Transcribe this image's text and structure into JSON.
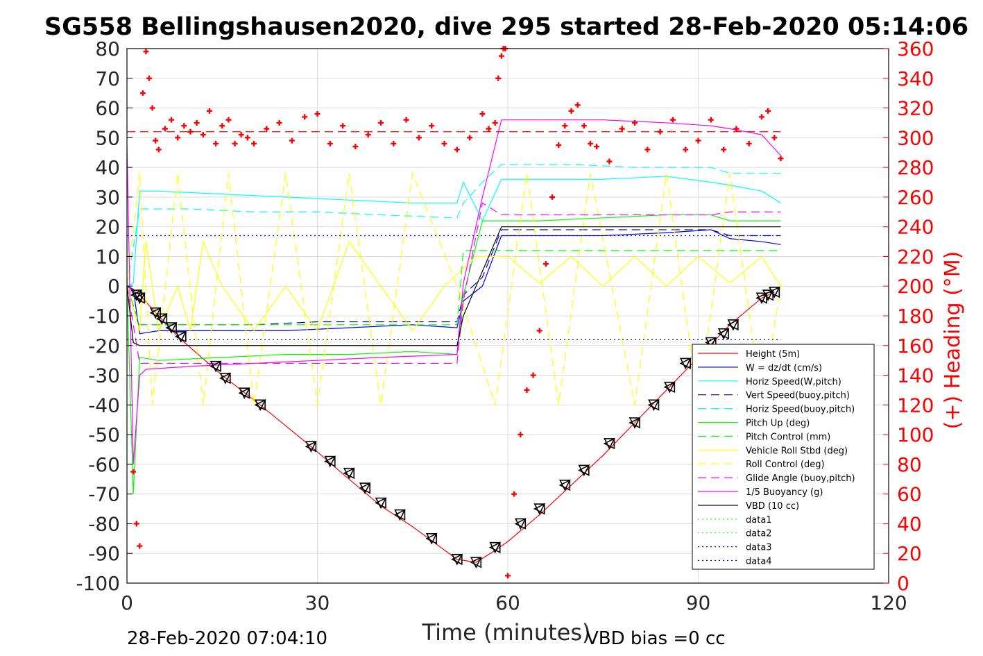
{
  "chart_data": {
    "type": "line",
    "title": "SG558 Bellingshausen2020, dive 295 started 28-Feb-2020 05:14:06",
    "xlabel": "Time (minutes)",
    "ylabel": "",
    "y2label": "(+) Heading (°M)",
    "xlim": [
      0,
      120
    ],
    "ylim": [
      -100,
      80
    ],
    "y2lim": [
      0,
      360
    ],
    "xticks": [
      "0",
      "30",
      "60",
      "90",
      "120"
    ],
    "yticks": [
      "80",
      "70",
      "60",
      "50",
      "40",
      "30",
      "20",
      "10",
      "0",
      "-10",
      "-20",
      "-30",
      "-40",
      "-50",
      "-60",
      "-70",
      "-80",
      "-90",
      "-100"
    ],
    "y2ticks": [
      "360",
      "340",
      "320",
      "300",
      "280",
      "260",
      "240",
      "220",
      "200",
      "180",
      "160",
      "140",
      "120",
      "100",
      "80",
      "60",
      "40",
      "20",
      "0"
    ],
    "grid": true,
    "legend_position": "bottom-right",
    "footer_left": "28-Feb-2020 07:04:10",
    "footer_right": "VBD bias =0 cc",
    "colors": {
      "red": "#ff0000",
      "blue": "#0000ff",
      "cyan": "#00ffff",
      "green": "#00ff00",
      "yellow": "#ffff00",
      "magenta": "#ff00ff",
      "black": "#000000",
      "navy": "#0000a0"
    },
    "series": [
      {
        "name": "Height (5m)",
        "color": "#ff0000",
        "style": "solid",
        "x": [
          0,
          2,
          5,
          8,
          15,
          21,
          29,
          35,
          40,
          45,
          52,
          55,
          58,
          60,
          65,
          70,
          75,
          80,
          85,
          90,
          95,
          100,
          102
        ],
        "y": [
          0,
          -3,
          -10,
          -17,
          -30,
          -40,
          -54,
          -65,
          -74,
          -81,
          -92,
          -93,
          -89,
          -86,
          -77,
          -67,
          -57,
          -46,
          -35,
          -24,
          -13,
          -4,
          -2
        ]
      },
      {
        "name": "W = dz/dt (cm/s)",
        "color": "#0000ff",
        "style": "solid",
        "x": [
          0,
          1,
          2,
          5,
          15,
          25,
          35,
          45,
          52,
          53,
          56,
          59,
          65,
          75,
          85,
          92,
          95,
          100,
          103
        ],
        "y": [
          0,
          -1,
          -16,
          -15,
          -15,
          -15,
          -14,
          -13,
          -14,
          -5,
          0,
          17,
          17,
          17,
          18,
          19,
          16,
          15,
          14
        ]
      },
      {
        "name": "Horiz Speed(W,pitch)",
        "color": "#00ffff",
        "style": "solid",
        "x": [
          0,
          1,
          2,
          5,
          15,
          25,
          35,
          45,
          52,
          53,
          56,
          59,
          65,
          75,
          85,
          92,
          95,
          100,
          103
        ],
        "y": [
          0,
          1,
          32,
          32,
          31,
          30,
          29,
          28,
          28,
          35,
          22,
          36,
          36,
          36,
          37,
          35,
          34,
          32,
          28
        ]
      },
      {
        "name": "Vert Speed(buoy,pitch)",
        "color": "#0000a0",
        "style": "dash",
        "x": [
          0,
          2,
          10,
          20,
          30,
          40,
          52,
          53,
          56,
          59,
          70,
          80,
          92,
          95,
          103
        ],
        "y": [
          0,
          -13,
          -13,
          -13,
          -12,
          -12,
          -12,
          -3,
          3,
          19,
          19,
          19,
          19,
          17,
          17
        ]
      },
      {
        "name": "Horiz Speed(buoy,pitch)",
        "color": "#00ffff",
        "style": "dash",
        "x": [
          0,
          2,
          10,
          20,
          30,
          40,
          52,
          53,
          56,
          59,
          70,
          80,
          92,
          95,
          103
        ],
        "y": [
          0,
          26,
          26,
          25,
          25,
          24,
          23,
          28,
          35,
          41,
          41,
          40,
          40,
          38,
          38
        ]
      },
      {
        "name": "Pitch Up (deg)",
        "color": "#00ff00",
        "style": "solid",
        "x": [
          0,
          1,
          2,
          5,
          15,
          25,
          35,
          45,
          52,
          53,
          56,
          59,
          65,
          75,
          85,
          92,
          95,
          100,
          103
        ],
        "y": [
          0,
          -70,
          -24,
          -25,
          -24,
          -23,
          -23,
          -22,
          -23,
          -3,
          22,
          22,
          22,
          23,
          24,
          24,
          22,
          22,
          22
        ]
      },
      {
        "name": "Pitch Control (mm)",
        "color": "#00ff00",
        "style": "dash",
        "x": [
          0,
          2,
          10,
          20,
          30,
          40,
          52,
          53,
          59,
          70,
          80,
          92,
          103
        ],
        "y": [
          0,
          -13,
          -13,
          -13,
          -13,
          -13,
          -13,
          12,
          12,
          12,
          12,
          12,
          12
        ]
      },
      {
        "name": "Vehicle Roll Stbd (deg)",
        "color": "#ffff00",
        "style": "solid",
        "x": [
          0,
          2,
          3,
          4,
          5,
          8,
          10,
          12,
          15,
          20,
          25,
          30,
          35,
          40,
          45,
          50,
          55,
          60,
          65,
          70,
          75,
          80,
          85,
          90,
          95,
          100,
          103
        ],
        "y": [
          0,
          -15,
          15,
          0,
          -15,
          0,
          -15,
          15,
          0,
          -15,
          0,
          -15,
          15,
          0,
          -15,
          0,
          10,
          10,
          1,
          10,
          0,
          10,
          0,
          10,
          1,
          10,
          0
        ]
      },
      {
        "name": "Roll Control (deg)",
        "color": "#ffff00",
        "style": "dash",
        "x": [
          0,
          2,
          4,
          8,
          12,
          16,
          20,
          25,
          30,
          35,
          40,
          45,
          52,
          58,
          63,
          68,
          73,
          80,
          85,
          90,
          95,
          100,
          103
        ],
        "y": [
          0,
          38,
          -40,
          38,
          -40,
          38,
          -40,
          38,
          -40,
          38,
          -40,
          38,
          0,
          -40,
          38,
          -40,
          38,
          -40,
          38,
          -40,
          38,
          -40,
          0
        ]
      },
      {
        "name": "Glide Angle (buoy,pitch)",
        "color": "#ff00ff",
        "style": "dash",
        "x": [
          0,
          2,
          10,
          20,
          30,
          40,
          52,
          53,
          56,
          59,
          70,
          80,
          92,
          95,
          103
        ],
        "y": [
          0,
          -26,
          -26,
          -26,
          -26,
          -26,
          -26,
          -5,
          28,
          24,
          24,
          24,
          24,
          25,
          25
        ]
      },
      {
        "name": "1/5 Buoyancy (g)",
        "color": "#ff00ff",
        "style": "solid",
        "x": [
          0,
          1,
          2,
          3,
          10,
          20,
          30,
          40,
          52,
          53,
          56,
          59,
          65,
          75,
          85,
          92,
          95,
          100,
          103
        ],
        "y": [
          47,
          -60,
          -30,
          -28,
          -27,
          -26,
          -25,
          -24,
          -23,
          1,
          30,
          56,
          56,
          56,
          55,
          54,
          53,
          51,
          44
        ]
      },
      {
        "name": "VBD (10 cc)",
        "color": "#000000",
        "style": "solid",
        "x": [
          0,
          1,
          2,
          52,
          53,
          59,
          103
        ],
        "y": [
          0,
          -19,
          -20,
          -20,
          -10,
          20,
          20
        ]
      },
      {
        "name": "data1",
        "color": "#00ff00",
        "style": "dot",
        "x": [],
        "y": []
      },
      {
        "name": "data2",
        "color": "#00ff00",
        "style": "dot",
        "x": [],
        "y": []
      },
      {
        "name": "data3",
        "color": "#0000a0",
        "style": "dot",
        "x": [
          0,
          103
        ],
        "y": [
          17,
          17
        ]
      },
      {
        "name": "data4",
        "color": "#0000a0",
        "style": "dot",
        "x": [
          0,
          103
        ],
        "y": [
          -18,
          -18
        ]
      }
    ],
    "reference_line": {
      "color": "#ff0000",
      "style": "dash",
      "x": [
        0,
        103
      ],
      "y": [
        52,
        52
      ]
    },
    "heading": {
      "axis": "right",
      "color": "#ff0000",
      "marker": "+",
      "x": [
        1.0,
        1.5,
        2.0,
        2.5,
        3.0,
        3.5,
        4.0,
        4.5,
        5.0,
        6.0,
        7.0,
        8.0,
        9.0,
        10.0,
        11.0,
        12.0,
        13.0,
        14.0,
        15.0,
        16.0,
        17.0,
        18.0,
        19.0,
        20.0,
        22.0,
        24.0,
        26.0,
        28.0,
        30.0,
        32.0,
        34.0,
        36.0,
        38.0,
        40.0,
        42.0,
        44.0,
        46.0,
        48.0,
        50.0,
        52.0,
        54.0,
        56.0,
        57.0,
        58.0,
        58.5,
        59.0,
        59.3,
        59.6,
        60.0,
        61.0,
        62.0,
        63.0,
        64.0,
        65.0,
        66.0,
        67.0,
        68.0,
        69.0,
        70.0,
        71.0,
        72.0,
        73.0,
        74.0,
        76.0,
        78.0,
        80.0,
        82.0,
        84.0,
        86.0,
        88.0,
        90.0,
        92.0,
        94.0,
        96.0,
        98.0,
        100.0,
        101.0,
        102.0,
        103.0
      ],
      "y": [
        75,
        40,
        25,
        330,
        358,
        340,
        320,
        298,
        292,
        306,
        312,
        300,
        308,
        304,
        310,
        302,
        318,
        296,
        308,
        312,
        296,
        302,
        300,
        296,
        306,
        310,
        298,
        314,
        316,
        296,
        308,
        294,
        302,
        310,
        296,
        312,
        300,
        308,
        296,
        292,
        300,
        316,
        306,
        310,
        340,
        355,
        360,
        360,
        5,
        60,
        100,
        130,
        140,
        170,
        215,
        260,
        295,
        308,
        318,
        322,
        308,
        296,
        294,
        284,
        306,
        310,
        292,
        304,
        312,
        292,
        298,
        312,
        292,
        306,
        296,
        314,
        318,
        300,
        286
      ]
    },
    "triangles": {
      "color": "#000000",
      "marker": "triangle",
      "x": [
        1.5,
        2.0,
        4.5,
        5.5,
        7.0,
        8.5,
        14,
        15.5,
        18.5,
        21,
        29,
        32,
        35,
        37.5,
        40,
        43,
        48,
        52,
        55,
        58,
        62,
        65,
        69,
        72,
        76,
        80,
        83,
        85.5,
        88,
        92,
        94,
        95.5,
        100,
        101,
        102
      ],
      "y": [
        -3,
        -4,
        -9,
        -11,
        -14,
        -17,
        -27,
        -31,
        -36,
        -40,
        -54,
        -59,
        -63,
        -68,
        -73,
        -77,
        -85,
        -92,
        -93,
        -88,
        -80,
        -75,
        -67,
        -62,
        -53,
        -46,
        -40,
        -34,
        -26,
        -19,
        -16,
        -13,
        -4,
        -3,
        -2
      ]
    }
  }
}
